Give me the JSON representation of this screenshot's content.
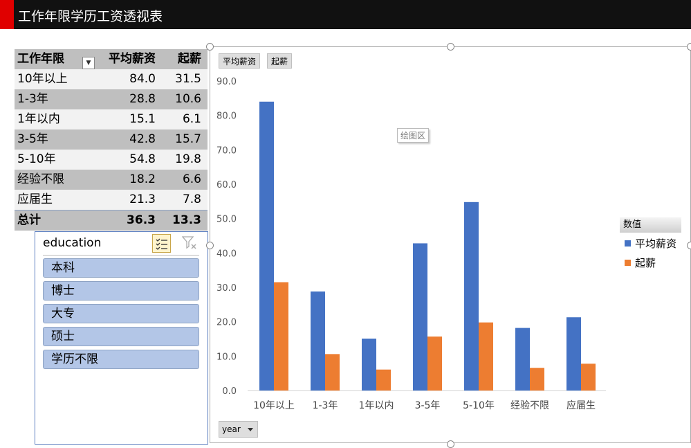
{
  "window": {
    "title": "工作年限学历工资透视表"
  },
  "pivot": {
    "headers": [
      "工作年限",
      "平均薪资",
      "起薪"
    ],
    "rows": [
      {
        "label": "10年以上",
        "avg": "84.0",
        "start": "31.5"
      },
      {
        "label": "1-3年",
        "avg": "28.8",
        "start": "10.6"
      },
      {
        "label": "1年以内",
        "avg": "15.1",
        "start": "6.1"
      },
      {
        "label": "3-5年",
        "avg": "42.8",
        "start": "15.7"
      },
      {
        "label": "5-10年",
        "avg": "54.8",
        "start": "19.8"
      },
      {
        "label": "经验不限",
        "avg": "18.2",
        "start": "6.6"
      },
      {
        "label": "应届生",
        "avg": "21.3",
        "start": "7.8"
      }
    ],
    "total": {
      "label": "总计",
      "avg": "36.3",
      "start": "13.3"
    }
  },
  "slicer": {
    "title": "education",
    "items": [
      "本科",
      "博士",
      "大专",
      "硕士",
      "学历不限"
    ]
  },
  "chart": {
    "field_buttons": [
      "平均薪资",
      "起薪"
    ],
    "axis_button": "year",
    "legend_title": "数值",
    "tooltip": "绘图区",
    "colors": {
      "平均薪资": "#4472c4",
      "起薪": "#ed7d31"
    }
  },
  "chart_data": {
    "type": "bar",
    "categories": [
      "10年以上",
      "1-3年",
      "1年以内",
      "3-5年",
      "5-10年",
      "经验不限",
      "应届生"
    ],
    "series": [
      {
        "name": "平均薪资",
        "values": [
          84.0,
          28.8,
          15.1,
          42.8,
          54.8,
          18.2,
          21.3
        ]
      },
      {
        "name": "起薪",
        "values": [
          31.5,
          10.6,
          6.1,
          15.7,
          19.8,
          6.6,
          7.8
        ]
      }
    ],
    "ylim": [
      0,
      90
    ],
    "yticks": [
      "0.0",
      "10.0",
      "20.0",
      "30.0",
      "40.0",
      "50.0",
      "60.0",
      "70.0",
      "80.0",
      "90.0"
    ],
    "legend": "right"
  }
}
